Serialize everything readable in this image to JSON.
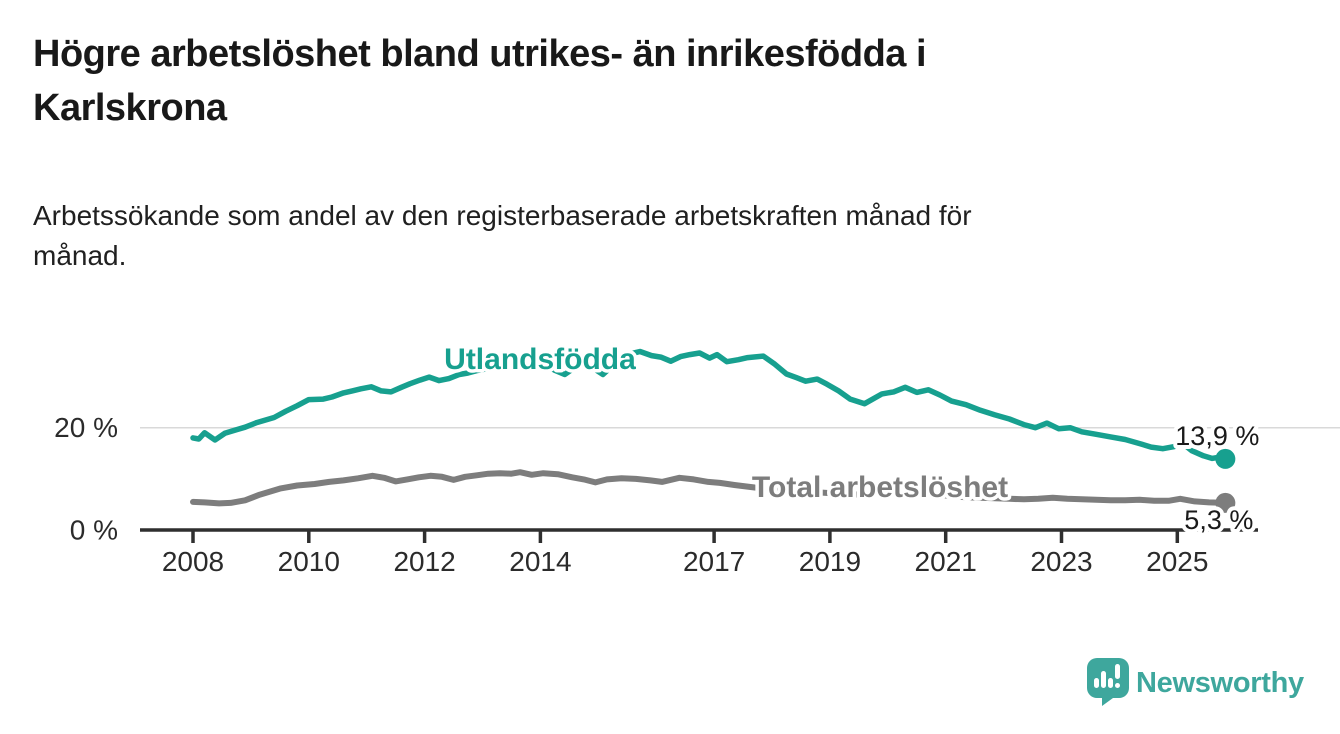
{
  "title": "Högre arbetslöshet bland utrikes- än inrikesfödda i Karlskrona",
  "title_lines": [
    "Högre arbetslöshet bland utrikes- än inrikesfödda i",
    "Karlskrona"
  ],
  "subtitle": "Arbetssökande som andel av den registerbaserade arbetskraften månad för månad.",
  "subtitle_lines": [
    "Arbetssökande som andel av den registerbaserade arbetskraften månad för",
    "månad."
  ],
  "branding": {
    "logo_text": "Newsworthy",
    "logo_color": "#3ea79d"
  },
  "colors": {
    "accent_teal": "#17a08f",
    "series_gray": "#7d7d7d",
    "axis": "#2f2f2f",
    "gridline": "#d9d9d9"
  },
  "chart_data": {
    "type": "line",
    "title": "Högre arbetslöshet bland utrikes- än inrikesfödda i Karlskrona",
    "subtitle": "Arbetssökande som andel av den registerbaserade arbetskraften månad för månad.",
    "unit": "%",
    "x_axis": {
      "ticks": [
        2008,
        2010,
        2012,
        2014,
        2017,
        2019,
        2021,
        2023,
        2025
      ],
      "range": [
        2007.1,
        2026.4
      ],
      "grid": false
    },
    "y_axis": {
      "ticks": [
        {
          "value": 20,
          "label": "20 %"
        },
        {
          "value": 0,
          "label": "0 %"
        }
      ],
      "range": [
        0,
        37
      ],
      "grid": true
    },
    "legend_position": "inline-labels-on-lines",
    "series": [
      {
        "name": "Utlandsfödda",
        "color": "#17a08f",
        "end_value": 13.9,
        "end_label": "13,9 %",
        "points": [
          [
            2008.0,
            18.0
          ],
          [
            2008.1,
            17.8
          ],
          [
            2008.2,
            19.0
          ],
          [
            2008.38,
            17.6
          ],
          [
            2008.55,
            18.9
          ],
          [
            2008.75,
            19.6
          ],
          [
            2008.9,
            20.1
          ],
          [
            2009.1,
            21.0
          ],
          [
            2009.4,
            22.0
          ],
          [
            2009.6,
            23.2
          ],
          [
            2009.8,
            24.3
          ],
          [
            2010.0,
            25.5
          ],
          [
            2010.25,
            25.6
          ],
          [
            2010.4,
            26.0
          ],
          [
            2010.6,
            26.8
          ],
          [
            2010.75,
            27.2
          ],
          [
            2010.9,
            27.6
          ],
          [
            2011.08,
            28.0
          ],
          [
            2011.25,
            27.2
          ],
          [
            2011.42,
            27.0
          ],
          [
            2011.6,
            27.9
          ],
          [
            2011.75,
            28.6
          ],
          [
            2011.92,
            29.3
          ],
          [
            2012.08,
            29.9
          ],
          [
            2012.25,
            29.2
          ],
          [
            2012.42,
            29.6
          ],
          [
            2012.6,
            30.4
          ],
          [
            2012.75,
            30.7
          ],
          [
            2012.92,
            31.2
          ],
          [
            2013.1,
            31.6
          ],
          [
            2013.25,
            31.9
          ],
          [
            2013.42,
            32.3
          ],
          [
            2013.58,
            32.1
          ],
          [
            2013.75,
            32.6
          ],
          [
            2013.92,
            32.9
          ],
          [
            2014.08,
            32.3
          ],
          [
            2014.25,
            31.2
          ],
          [
            2014.42,
            30.4
          ],
          [
            2014.6,
            31.8
          ],
          [
            2014.75,
            32.8
          ],
          [
            2014.92,
            31.6
          ],
          [
            2015.08,
            30.4
          ],
          [
            2015.25,
            32.2
          ],
          [
            2015.42,
            33.6
          ],
          [
            2015.58,
            34.5
          ],
          [
            2015.72,
            34.9
          ],
          [
            2015.92,
            34.1
          ],
          [
            2016.08,
            33.8
          ],
          [
            2016.25,
            33.0
          ],
          [
            2016.42,
            33.9
          ],
          [
            2016.58,
            34.3
          ],
          [
            2016.75,
            34.6
          ],
          [
            2016.92,
            33.6
          ],
          [
            2017.05,
            34.3
          ],
          [
            2017.22,
            32.9
          ],
          [
            2017.42,
            33.3
          ],
          [
            2017.58,
            33.7
          ],
          [
            2017.85,
            34.0
          ],
          [
            2018.05,
            32.4
          ],
          [
            2018.25,
            30.5
          ],
          [
            2018.42,
            29.8
          ],
          [
            2018.58,
            29.1
          ],
          [
            2018.78,
            29.5
          ],
          [
            2018.95,
            28.5
          ],
          [
            2019.15,
            27.2
          ],
          [
            2019.35,
            25.6
          ],
          [
            2019.6,
            24.7
          ],
          [
            2019.9,
            26.6
          ],
          [
            2020.1,
            27.0
          ],
          [
            2020.3,
            27.9
          ],
          [
            2020.5,
            26.9
          ],
          [
            2020.7,
            27.4
          ],
          [
            2020.9,
            26.4
          ],
          [
            2021.1,
            25.2
          ],
          [
            2021.35,
            24.5
          ],
          [
            2021.6,
            23.4
          ],
          [
            2021.85,
            22.5
          ],
          [
            2022.1,
            21.7
          ],
          [
            2022.35,
            20.6
          ],
          [
            2022.55,
            20.0
          ],
          [
            2022.75,
            20.9
          ],
          [
            2022.95,
            19.8
          ],
          [
            2023.15,
            20.0
          ],
          [
            2023.35,
            19.2
          ],
          [
            2023.6,
            18.7
          ],
          [
            2023.85,
            18.2
          ],
          [
            2024.1,
            17.7
          ],
          [
            2024.35,
            16.9
          ],
          [
            2024.55,
            16.2
          ],
          [
            2024.75,
            15.9
          ],
          [
            2024.95,
            16.3
          ],
          [
            2025.05,
            17.3
          ],
          [
            2025.25,
            15.5
          ],
          [
            2025.45,
            14.5
          ],
          [
            2025.6,
            14.0
          ],
          [
            2025.7,
            14.2
          ],
          [
            2025.83,
            13.9
          ]
        ]
      },
      {
        "name": "Total arbetslöshet",
        "color": "#7d7d7d",
        "end_value": 5.3,
        "end_label": "5,3 %",
        "points": [
          [
            2008.0,
            5.5
          ],
          [
            2008.2,
            5.4
          ],
          [
            2008.45,
            5.2
          ],
          [
            2008.65,
            5.3
          ],
          [
            2008.9,
            5.8
          ],
          [
            2009.15,
            6.9
          ],
          [
            2009.5,
            8.1
          ],
          [
            2009.8,
            8.7
          ],
          [
            2010.1,
            9.0
          ],
          [
            2010.35,
            9.4
          ],
          [
            2010.6,
            9.7
          ],
          [
            2010.85,
            10.1
          ],
          [
            2011.1,
            10.6
          ],
          [
            2011.3,
            10.2
          ],
          [
            2011.5,
            9.5
          ],
          [
            2011.7,
            9.9
          ],
          [
            2011.9,
            10.3
          ],
          [
            2012.1,
            10.6
          ],
          [
            2012.3,
            10.4
          ],
          [
            2012.5,
            9.8
          ],
          [
            2012.7,
            10.4
          ],
          [
            2012.9,
            10.7
          ],
          [
            2013.1,
            11.0
          ],
          [
            2013.3,
            11.1
          ],
          [
            2013.5,
            11.0
          ],
          [
            2013.65,
            11.3
          ],
          [
            2013.85,
            10.8
          ],
          [
            2014.05,
            11.1
          ],
          [
            2014.3,
            10.9
          ],
          [
            2014.55,
            10.3
          ],
          [
            2014.75,
            9.9
          ],
          [
            2014.95,
            9.3
          ],
          [
            2015.15,
            9.9
          ],
          [
            2015.4,
            10.1
          ],
          [
            2015.65,
            10.0
          ],
          [
            2015.9,
            9.7
          ],
          [
            2016.1,
            9.4
          ],
          [
            2016.4,
            10.2
          ],
          [
            2016.65,
            9.9
          ],
          [
            2016.9,
            9.4
          ],
          [
            2017.1,
            9.2
          ],
          [
            2017.35,
            8.8
          ],
          [
            2017.7,
            8.3
          ],
          [
            2018.1,
            7.9
          ],
          [
            2018.5,
            7.6
          ],
          [
            2018.9,
            7.3
          ],
          [
            2019.3,
            7.0
          ],
          [
            2019.7,
            6.9
          ],
          [
            2020.0,
            7.5
          ],
          [
            2020.4,
            7.3
          ],
          [
            2020.8,
            7.0
          ],
          [
            2021.1,
            6.6
          ],
          [
            2021.35,
            6.4
          ],
          [
            2021.6,
            6.3
          ],
          [
            2021.85,
            6.2
          ],
          [
            2022.1,
            6.1
          ],
          [
            2022.35,
            6.0
          ],
          [
            2022.6,
            6.1
          ],
          [
            2022.85,
            6.3
          ],
          [
            2023.1,
            6.1
          ],
          [
            2023.35,
            6.0
          ],
          [
            2023.6,
            5.9
          ],
          [
            2023.85,
            5.8
          ],
          [
            2024.1,
            5.8
          ],
          [
            2024.35,
            5.9
          ],
          [
            2024.6,
            5.7
          ],
          [
            2024.85,
            5.7
          ],
          [
            2025.05,
            6.1
          ],
          [
            2025.3,
            5.6
          ],
          [
            2025.55,
            5.4
          ],
          [
            2025.83,
            5.3
          ]
        ]
      }
    ]
  }
}
